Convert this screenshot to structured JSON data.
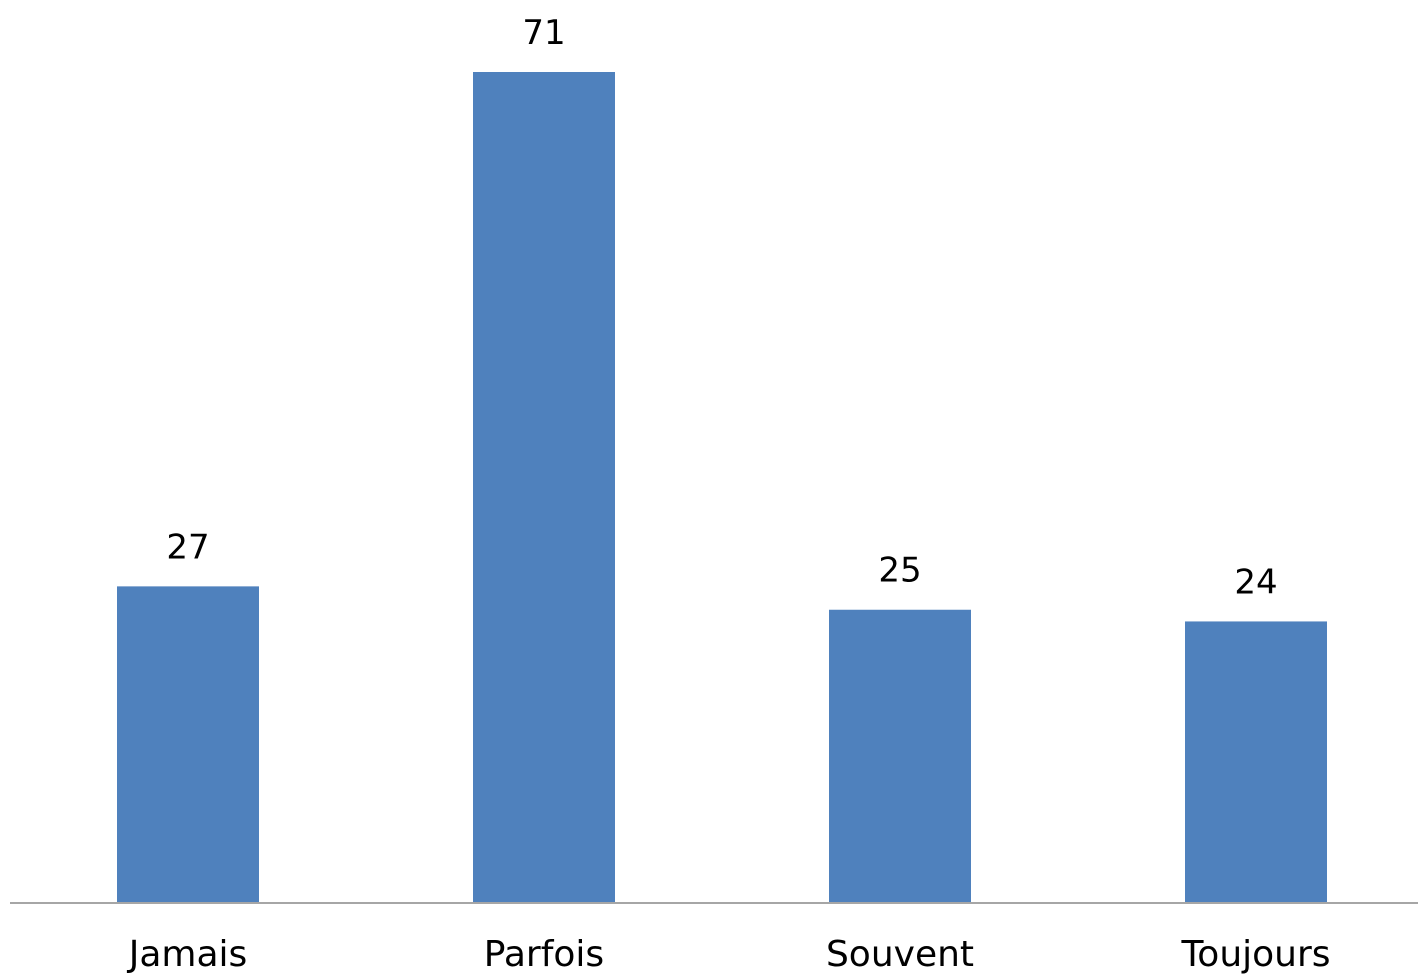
{
  "chart_data": {
    "type": "bar",
    "title": "",
    "xlabel": "",
    "ylabel": "",
    "categories": [
      "Jamais",
      "Parfois",
      "Souvent",
      "Toujours"
    ],
    "values": [
      27,
      71,
      25,
      24
    ],
    "data_labels": [
      "27",
      "71",
      "25",
      "24"
    ],
    "ylim": [
      0,
      71
    ],
    "grid": false,
    "legend": "none",
    "bar_color": "#4f81bd",
    "axis_color": "#a6a6a6"
  }
}
